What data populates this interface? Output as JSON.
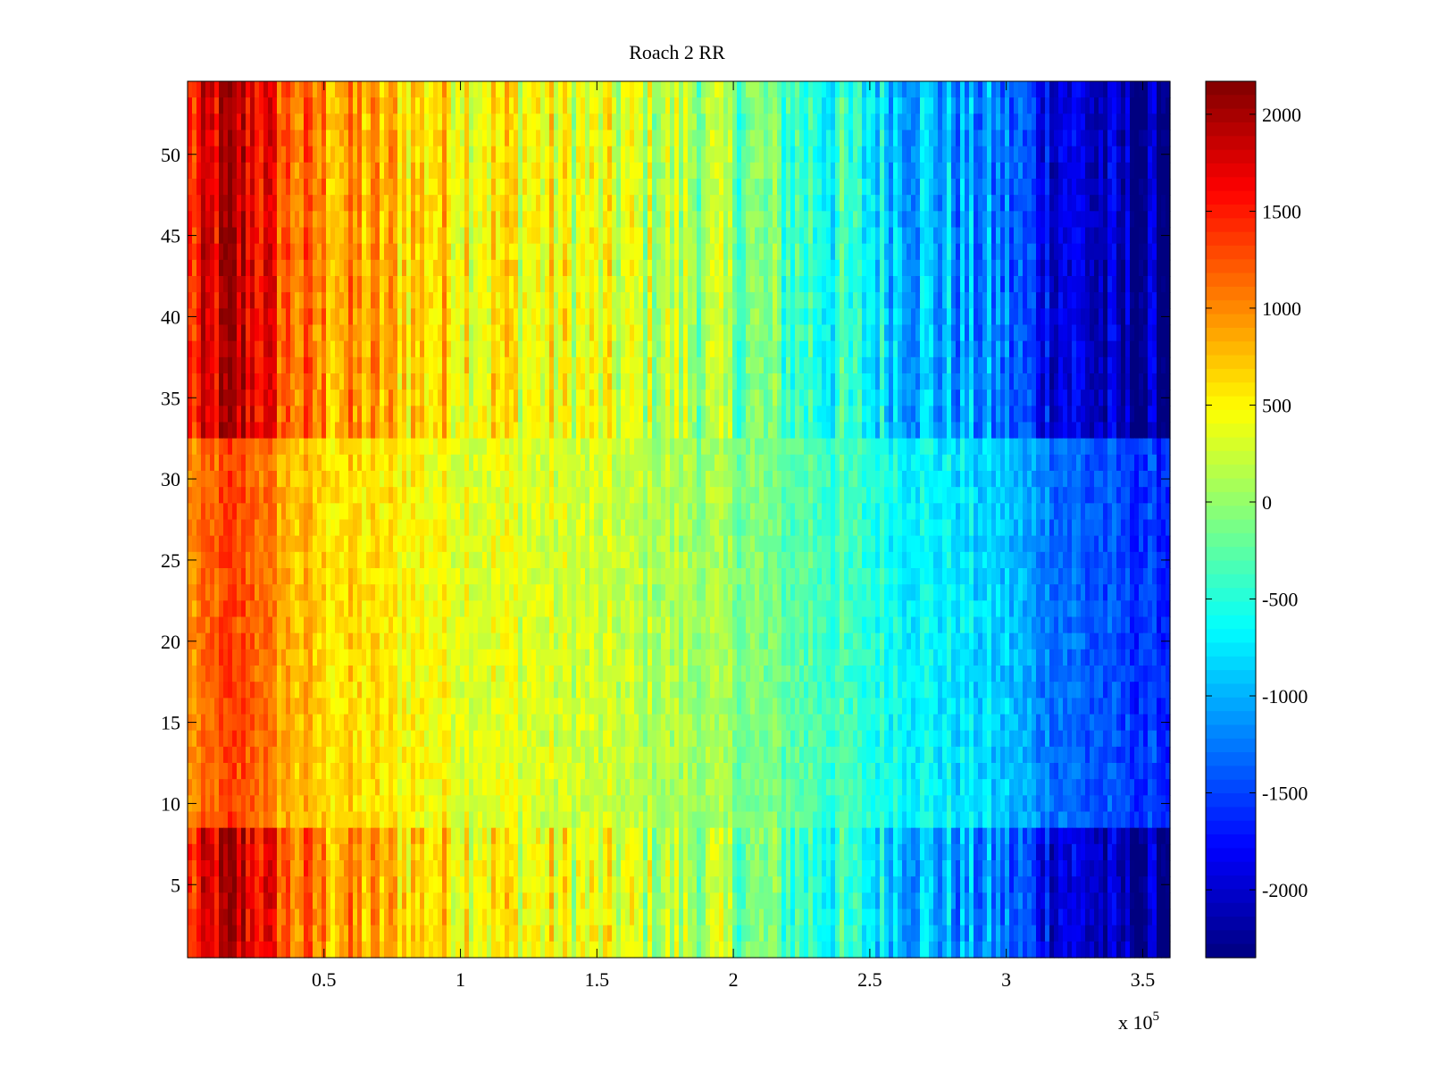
{
  "chart_data": {
    "type": "heatmap",
    "title": "Roach 2 RR",
    "xlabel": "",
    "ylabel": "",
    "x_range": [
      0,
      360000
    ],
    "y_range": [
      0.5,
      54.5
    ],
    "x_ticks": [
      50000,
      100000,
      150000,
      200000,
      250000,
      300000,
      350000
    ],
    "x_tick_labels": [
      "0.5",
      "1",
      "1.5",
      "2",
      "2.5",
      "3",
      "3.5"
    ],
    "x_multiplier_label": "x 10",
    "x_multiplier_exponent": "5",
    "y_ticks": [
      5,
      10,
      15,
      20,
      25,
      30,
      35,
      40,
      45,
      50
    ],
    "y_tick_labels": [
      "5",
      "10",
      "15",
      "20",
      "25",
      "30",
      "35",
      "40",
      "45",
      "50"
    ],
    "colorbar": {
      "colormap": "jet",
      "range": [
        -2350,
        2170
      ],
      "ticks": [
        2000,
        1500,
        1000,
        500,
        0,
        -500,
        -1000,
        -1500,
        -2000
      ],
      "tick_labels": [
        "2000",
        "1500",
        "1000",
        "500",
        "0",
        "-500",
        "-1000",
        "-1500",
        "-2000"
      ]
    },
    "rows": 54,
    "value_profile": {
      "description_of_pattern": "",
      "x_anchors": [
        0,
        15000,
        25000,
        37000,
        50000,
        80000,
        110000,
        150000,
        190000,
        230000,
        270000,
        300000,
        315000,
        340000,
        360000
      ],
      "value_anchors": [
        900,
        1300,
        1200,
        800,
        650,
        500,
        380,
        220,
        50,
        -300,
        -650,
        -900,
        -1200,
        -1500,
        -1600
      ]
    },
    "grid": false,
    "legend": "colorbar-right"
  }
}
